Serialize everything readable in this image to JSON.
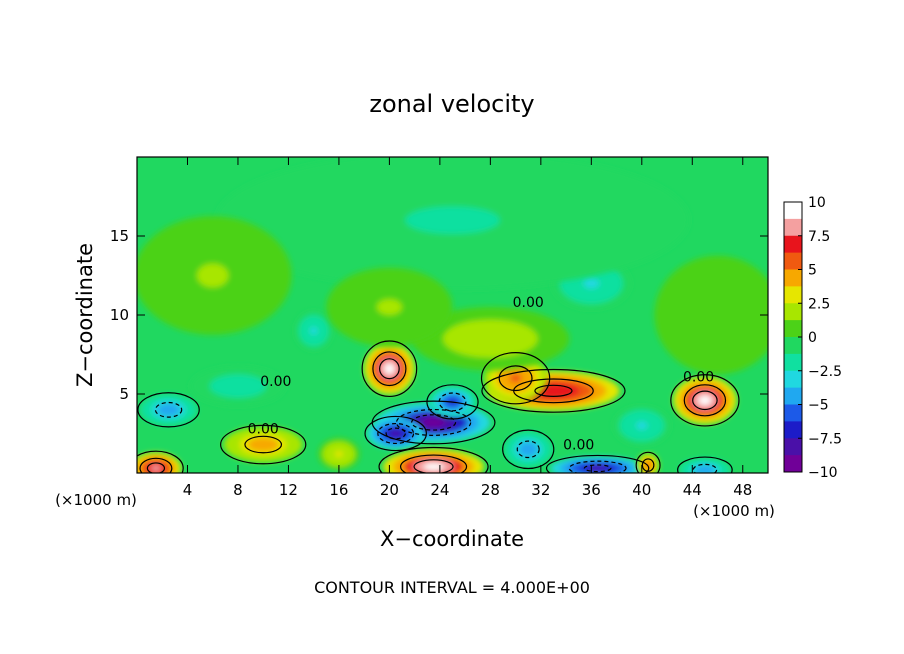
{
  "chart_data": {
    "type": "heatmap",
    "title": "zonal velocity",
    "xlabel": "X−coordinate",
    "ylabel": "Z−coordinate",
    "x_unit_left": "(×1000 m)",
    "x_unit_right": "(×1000 m)",
    "xlim": [
      0,
      50
    ],
    "ylim": [
      0,
      20
    ],
    "x_ticks": [
      4,
      8,
      12,
      16,
      20,
      24,
      28,
      32,
      36,
      40,
      44,
      48
    ],
    "x_tick_labels": [
      "4",
      "8",
      "12",
      "16",
      "20",
      "24",
      "28",
      "32",
      "36",
      "40",
      "44",
      "48"
    ],
    "y_ticks": [
      5,
      10,
      15
    ],
    "y_tick_labels": [
      "5",
      "10",
      "15"
    ],
    "footer": "CONTOUR INTERVAL = 4.000E+00",
    "contour_interval": 4.0,
    "contour_label": "0.00",
    "contour_label_positions": [
      [
        31,
        10.5
      ],
      [
        35,
        1.5
      ],
      [
        44.5,
        5.8
      ],
      [
        10,
        2.5
      ],
      [
        11,
        5.5
      ]
    ],
    "colorbar": {
      "range": [
        -10,
        10
      ],
      "ticks": [
        10,
        7.5,
        5,
        2.5,
        0,
        -2.5,
        -5,
        -7.5,
        -10
      ],
      "tick_labels": [
        "10",
        "7.5",
        "5",
        "2.5",
        "0",
        "−2.5",
        "−5",
        "−7.5",
        "−10"
      ],
      "colors": [
        "#ffffff",
        "#f4a0a0",
        "#e8141c",
        "#f05a10",
        "#f7a800",
        "#e6e600",
        "#a8e600",
        "#4cd218",
        "#20d860",
        "#10e0a0",
        "#20d8e0",
        "#20a8f0",
        "#1c5ae8",
        "#1c1cc8",
        "#4a10a8",
        "#700098"
      ]
    },
    "background_value": 0,
    "features": [
      {
        "x": 20,
        "z": 6.6,
        "rx": 1.6,
        "rz": 1.3,
        "value": 10
      },
      {
        "x": 45,
        "z": 4.6,
        "rx": 2.0,
        "rz": 1.2,
        "value": 10
      },
      {
        "x": 33,
        "z": 5.2,
        "rx": 4.2,
        "rz": 1.0,
        "value": 8
      },
      {
        "x": 30,
        "z": 6.0,
        "rx": 2.0,
        "rz": 1.2,
        "value": 6
      },
      {
        "x": 23.5,
        "z": 3.2,
        "rx": 3.6,
        "rz": 1.0,
        "value": -10
      },
      {
        "x": 20.5,
        "z": 2.5,
        "rx": 1.8,
        "rz": 0.8,
        "value": -9
      },
      {
        "x": 25.0,
        "z": 4.5,
        "rx": 1.5,
        "rz": 0.8,
        "value": -7
      },
      {
        "x": 23.5,
        "z": 0.4,
        "rx": 3.2,
        "rz": 0.9,
        "value": 10
      },
      {
        "x": 1.5,
        "z": 0.3,
        "rx": 1.6,
        "rz": 0.8,
        "value": 9
      },
      {
        "x": 2.5,
        "z": 4.0,
        "rx": 1.8,
        "rz": 0.8,
        "value": -5
      },
      {
        "x": 10.0,
        "z": 1.8,
        "rx": 2.5,
        "rz": 0.9,
        "value": 5
      },
      {
        "x": 16.0,
        "z": 1.2,
        "rx": 1.3,
        "rz": 0.8,
        "value": 3
      },
      {
        "x": 31.0,
        "z": 1.5,
        "rx": 1.5,
        "rz": 0.9,
        "value": -5
      },
      {
        "x": 36.5,
        "z": 0.3,
        "rx": 3.0,
        "rz": 0.6,
        "value": -8
      },
      {
        "x": 40.5,
        "z": 0.5,
        "rx": 0.7,
        "rz": 0.6,
        "value": 6
      },
      {
        "x": 45.0,
        "z": 0.2,
        "rx": 1.6,
        "rz": 0.6,
        "value": -5
      },
      {
        "x": 36.0,
        "z": 12.0,
        "rx": 2.5,
        "rz": 1.3,
        "value": -3
      },
      {
        "x": 14.0,
        "z": 9.0,
        "rx": 1.2,
        "rz": 1.0,
        "value": -3
      },
      {
        "x": 28.0,
        "z": 8.5,
        "rx": 5.0,
        "rz": 1.6,
        "value": 2
      },
      {
        "x": 8.0,
        "z": 5.5,
        "rx": 3.0,
        "rz": 1.0,
        "value": -2
      },
      {
        "x": 40.0,
        "z": 3.0,
        "rx": 1.8,
        "rz": 1.0,
        "value": -3
      },
      {
        "x": 25.0,
        "z": 16.0,
        "rx": 15.0,
        "rz": 3.5,
        "value": -1.5
      },
      {
        "x": 6.0,
        "z": 12.5,
        "rx": 5.0,
        "rz": 3.0,
        "value": 1.5
      },
      {
        "x": 46.0,
        "z": 10.0,
        "rx": 4.0,
        "rz": 3.0,
        "value": 1.2
      },
      {
        "x": 20.0,
        "z": 10.5,
        "rx": 4.0,
        "rz": 2.0,
        "value": 1.5
      }
    ]
  }
}
